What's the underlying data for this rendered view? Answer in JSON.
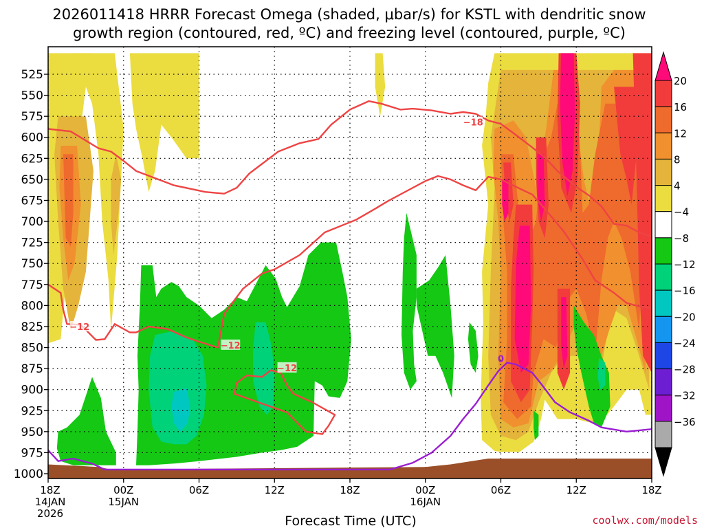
{
  "chart_data": {
    "type": "time-height contour",
    "title_line1": "2026011418 HRRR Forecast Omega (shaded, μbar/s) for KSTL with dendritic snow",
    "title_line2": "growth region (contoured, red, ºC) and freezing level (contoured, purple, ºC)",
    "xlabel": "Forecast Time (UTC)",
    "credit": "coolwx.com/models",
    "x_range_hours": [
      0,
      48
    ],
    "y_range_hPa": [
      500,
      1000
    ],
    "y_ticks": [
      525,
      550,
      575,
      600,
      625,
      650,
      675,
      700,
      725,
      750,
      775,
      800,
      825,
      850,
      875,
      900,
      925,
      950,
      975,
      1000
    ],
    "x_ticks": [
      {
        "h": 0,
        "lines": [
          "18Z",
          "14JAN",
          "2026"
        ]
      },
      {
        "h": 6,
        "lines": [
          "00Z",
          "15JAN"
        ]
      },
      {
        "h": 12,
        "lines": [
          "06Z"
        ]
      },
      {
        "h": 18,
        "lines": [
          "12Z"
        ]
      },
      {
        "h": 24,
        "lines": [
          "18Z"
        ]
      },
      {
        "h": 30,
        "lines": [
          "00Z",
          "16JAN"
        ]
      },
      {
        "h": 36,
        "lines": [
          "06Z"
        ]
      },
      {
        "h": 42,
        "lines": [
          "12Z"
        ]
      },
      {
        "h": 48,
        "lines": [
          "18Z"
        ]
      }
    ],
    "colorbar": {
      "labels": [
        "20",
        "16",
        "12",
        "8",
        "4",
        "−4",
        "−8",
        "−12",
        "−16",
        "−20",
        "−24",
        "−28",
        "−32",
        "−36"
      ],
      "colors_top_to_bottom": [
        "#ff0a78",
        "#f23c3c",
        "#ef6a2d",
        "#f0902e",
        "#e5b43a",
        "#ebdc40",
        "#ffffff",
        "#14c814",
        "#00d27a",
        "#00c8c0",
        "#1496f0",
        "#1e46e6",
        "#6e1ed2",
        "#a014c8",
        "#aaaaaa",
        "#000000"
      ]
    },
    "omega_colors": {
      "p4": "#ebdc40",
      "p8": "#e5b43a",
      "p12": "#f0902e",
      "p16": "#ef6a2d",
      "p20": "#f23c3c",
      "p24": "#ff0a78",
      "n4": "#14c814",
      "n8": "#00d27a",
      "n12": "#00c8c0"
    },
    "ground_color": "#9a4f28",
    "dgz_color": "#ee4444",
    "freezing_color": "#9a1ed2",
    "dgz_labels": [
      "−12",
      "−12",
      "−12",
      "−18"
    ],
    "freezing_label": "0",
    "series": [
      {
        "name": "dgz_upper",
        "kind": "line",
        "color_key": "dgz_color",
        "points": [
          [
            0,
            590
          ],
          [
            1.8,
            593
          ],
          [
            4,
            613
          ],
          [
            5,
            617
          ],
          [
            6,
            628
          ],
          [
            7,
            640
          ],
          [
            10,
            657
          ],
          [
            12.5,
            665
          ],
          [
            14,
            667
          ],
          [
            15,
            660
          ],
          [
            16,
            643
          ],
          [
            18.3,
            617
          ],
          [
            20,
            607
          ],
          [
            21.5,
            602
          ],
          [
            22.5,
            585
          ],
          [
            24,
            567
          ],
          [
            25.5,
            557
          ],
          [
            26.5,
            560
          ],
          [
            28,
            567
          ],
          [
            29,
            566
          ],
          [
            30.5,
            568
          ],
          [
            32,
            572
          ],
          [
            33,
            570
          ],
          [
            34,
            572
          ],
          [
            35,
            580
          ],
          [
            36,
            584
          ],
          [
            37,
            595
          ],
          [
            38.5,
            612
          ],
          [
            39.5,
            624
          ],
          [
            40.5,
            640
          ],
          [
            42,
            659
          ],
          [
            43,
            669
          ],
          [
            44,
            682
          ],
          [
            45,
            703
          ],
          [
            46,
            705
          ],
          [
            47,
            713
          ],
          [
            48,
            718
          ]
        ]
      },
      {
        "name": "dgz_lower",
        "kind": "line",
        "color_key": "dgz_color",
        "points": [
          [
            0,
            775
          ],
          [
            1,
            785
          ],
          [
            1.2,
            805
          ],
          [
            1.5,
            822
          ],
          [
            2.6,
            823
          ],
          [
            3.8,
            841
          ],
          [
            4.5,
            840
          ],
          [
            5.3,
            822
          ],
          [
            6.5,
            832
          ],
          [
            7,
            832
          ],
          [
            8,
            825
          ],
          [
            9.5,
            828
          ],
          [
            11,
            838
          ],
          [
            12,
            843
          ],
          [
            13.5,
            850
          ],
          [
            14,
            810
          ],
          [
            15.5,
            780
          ],
          [
            17,
            762
          ],
          [
            18,
            757
          ],
          [
            20,
            740
          ],
          [
            22,
            713
          ],
          [
            24.5,
            698
          ],
          [
            26,
            685
          ],
          [
            27,
            676
          ],
          [
            28.5,
            664
          ],
          [
            30,
            652
          ],
          [
            31,
            646
          ],
          [
            32,
            650
          ],
          [
            33,
            657
          ],
          [
            34,
            663
          ],
          [
            35,
            647
          ],
          [
            36,
            650
          ],
          [
            37.5,
            661
          ],
          [
            38.5,
            668
          ],
          [
            39.5,
            685
          ],
          [
            41,
            712
          ],
          [
            42.5,
            745
          ],
          [
            43.5,
            770
          ],
          [
            45,
            785
          ],
          [
            46,
            797
          ],
          [
            47,
            801
          ],
          [
            48,
            803
          ]
        ]
      },
      {
        "name": "dgz_pocket",
        "kind": "closed",
        "color_key": "dgz_color",
        "points": [
          [
            15,
            892
          ],
          [
            14.8,
            905
          ],
          [
            16.5,
            914
          ],
          [
            19,
            927
          ],
          [
            20.5,
            950
          ],
          [
            21.8,
            953
          ],
          [
            22.3,
            943
          ],
          [
            22.8,
            930
          ],
          [
            21,
            915
          ],
          [
            19.5,
            905
          ],
          [
            19,
            895
          ],
          [
            18.5,
            880
          ],
          [
            17.7,
            877
          ],
          [
            17,
            885
          ],
          [
            15.8,
            883
          ]
        ]
      },
      {
        "name": "freezing_level",
        "kind": "line",
        "color_key": "freezing_color",
        "points": [
          [
            0,
            972
          ],
          [
            0.8,
            985
          ],
          [
            2,
            982
          ],
          [
            3.5,
            988
          ],
          [
            4.5,
            995
          ],
          [
            27.2,
            995
          ],
          [
            29,
            987
          ],
          [
            30.5,
            975
          ],
          [
            32,
            955
          ],
          [
            33,
            935
          ],
          [
            34,
            917
          ],
          [
            35,
            895
          ],
          [
            35.8,
            878
          ],
          [
            36.5,
            868
          ],
          [
            37.2,
            870
          ],
          [
            38.5,
            880
          ],
          [
            39.3,
            895
          ],
          [
            40.3,
            915
          ],
          [
            41.5,
            927
          ],
          [
            43,
            937
          ],
          [
            44,
            945
          ],
          [
            46,
            950
          ],
          [
            48,
            947
          ]
        ]
      }
    ],
    "ground": [
      [
        0,
        989
      ],
      [
        4,
        992
      ],
      [
        5,
        995
      ],
      [
        30,
        992
      ],
      [
        32,
        989
      ],
      [
        35,
        982
      ],
      [
        48,
        982
      ]
    ]
  }
}
